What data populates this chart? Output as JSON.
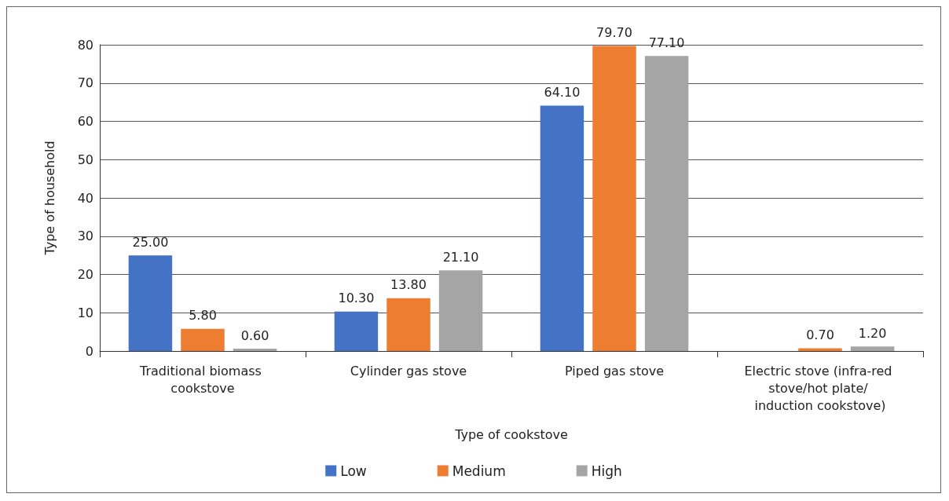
{
  "chart_data": {
    "type": "bar",
    "xlabel": "Type of cookstove",
    "ylabel": "Type of household",
    "categories": [
      "Traditional biomass cookstove",
      "Cylinder gas stove",
      "Piped gas stove",
      "Electric stove (infra-red stove/hot plate/ induction cookstove)"
    ],
    "series": [
      {
        "name": "Low",
        "color": "#4472c4",
        "values": [
          25.0,
          10.3,
          64.1,
          null
        ],
        "value_labels": [
          "25.00",
          "10.30",
          "64.10",
          null
        ]
      },
      {
        "name": "Medium",
        "color": "#ed7d31",
        "values": [
          5.8,
          13.8,
          79.7,
          0.7
        ],
        "value_labels": [
          "5.80",
          "13.80",
          "79.70",
          "0.70"
        ]
      },
      {
        "name": "High",
        "color": "#a5a5a5",
        "values": [
          0.6,
          21.1,
          77.1,
          1.2
        ],
        "value_labels": [
          "0.60",
          "21.10",
          "77.10",
          "1.20"
        ]
      }
    ],
    "ylim": [
      0,
      80
    ],
    "yticks": [
      0,
      10,
      20,
      30,
      40,
      50,
      60,
      70,
      80
    ],
    "grid": "y",
    "legend": "bottom"
  }
}
